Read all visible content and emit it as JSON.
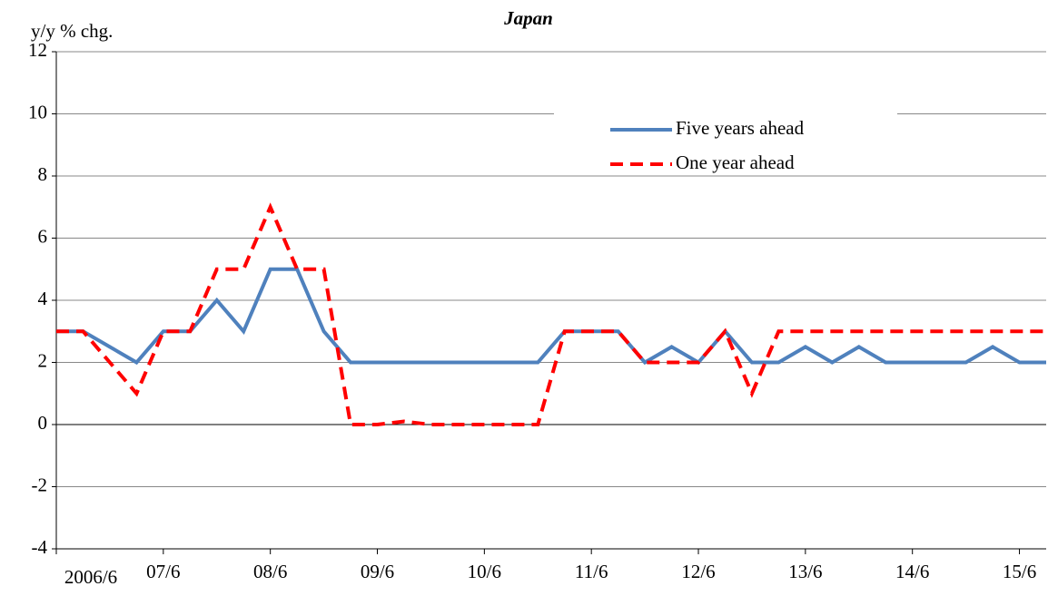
{
  "chart_data": {
    "type": "line",
    "title": "Japan",
    "y_label": "y/y % chg.",
    "categories": [
      "2006/6",
      null,
      null,
      null,
      "07/6",
      null,
      null,
      null,
      "08/6",
      null,
      null,
      null,
      "09/6",
      null,
      null,
      null,
      "10/6",
      null,
      null,
      null,
      "11/6",
      null,
      null,
      null,
      "12/6",
      null,
      null,
      null,
      "13/6",
      null,
      null,
      null,
      "14/6",
      null,
      null,
      null,
      "15/6",
      null
    ],
    "series": [
      {
        "name": "Five years ahead",
        "color": "#4f81bd",
        "dashed": false,
        "values": [
          3,
          3,
          2.5,
          2,
          3,
          3,
          4,
          3,
          5,
          5,
          3,
          2,
          2,
          2,
          2,
          2,
          2,
          2,
          2,
          3,
          3,
          3,
          2,
          2.5,
          2,
          3,
          2,
          2,
          2.5,
          2,
          2.5,
          2,
          2,
          2,
          2,
          2.5,
          2,
          2
        ]
      },
      {
        "name": "One year ahead",
        "color": "#ff0000",
        "dashed": true,
        "values": [
          3,
          3,
          2,
          1,
          3,
          3,
          5,
          5,
          7,
          5,
          5,
          0,
          0,
          0.1,
          0,
          0,
          0,
          0,
          0,
          3,
          3,
          3,
          2,
          2,
          2,
          3,
          1,
          3,
          3,
          3,
          3,
          3,
          3,
          3,
          3,
          3,
          3,
          3
        ]
      }
    ],
    "ylim": [
      -4,
      12
    ],
    "yticks": [
      -4,
      -2,
      0,
      2,
      4,
      6,
      8,
      10,
      12
    ],
    "grid": true,
    "legend": "top-right"
  }
}
